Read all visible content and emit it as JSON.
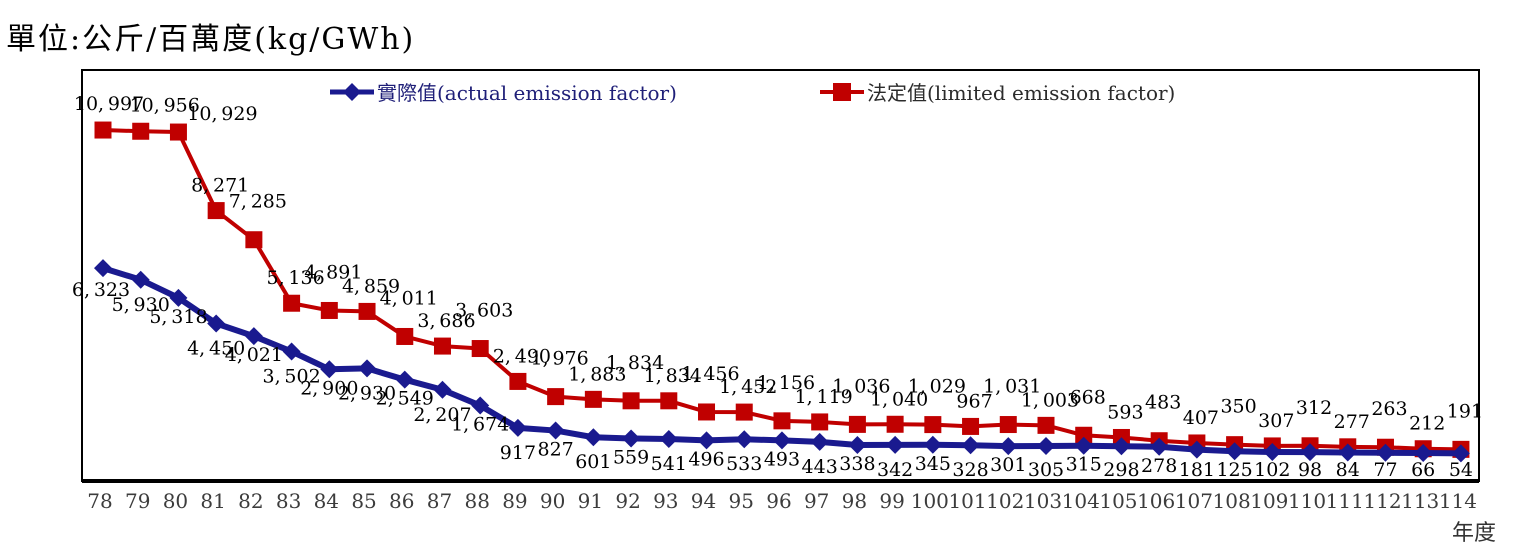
{
  "title": "單位:公斤/百萬度(kg/GWh)",
  "chart_data": {
    "type": "line",
    "title": "單位:公斤/百萬度(kg/GWh)",
    "xlabel": "年度",
    "ylabel": "",
    "ylim": [
      0,
      11500
    ],
    "grid": false,
    "legend_position": "top-center",
    "data_labels": true,
    "categories": [
      "78",
      "79",
      "80",
      "81",
      "82",
      "83",
      "84",
      "85",
      "86",
      "87",
      "88",
      "89",
      "90",
      "91",
      "92",
      "93",
      "94",
      "95",
      "96",
      "97",
      "98",
      "99",
      "100",
      "101",
      "102",
      "103",
      "104",
      "105",
      "106",
      "107",
      "108",
      "109",
      "110",
      "111",
      "112",
      "113",
      "114"
    ],
    "series": [
      {
        "name": "實際值(actual emission factor)",
        "color": "#1A1A8F",
        "marker": "diamond",
        "values": [
          6323,
          5930,
          5318,
          4450,
          4021,
          3502,
          2900,
          2930,
          2549,
          2207,
          1674,
          917,
          827,
          601,
          559,
          541,
          496,
          533,
          493,
          443,
          338,
          342,
          345,
          328,
          301,
          305,
          315,
          298,
          278,
          181,
          125,
          102,
          98,
          84,
          77,
          66,
          54
        ]
      },
      {
        "name": "法定值(limited emission factor)",
        "color": "#C00000",
        "marker": "square",
        "values": [
          10997,
          10956,
          10929,
          8271,
          7285,
          5136,
          4891,
          4859,
          4011,
          3686,
          3603,
          2490,
          1976,
          1883,
          1834,
          1834,
          1456,
          1452,
          1156,
          1119,
          1036,
          1040,
          1029,
          967,
          1031,
          1003,
          668,
          593,
          483,
          407,
          350,
          307,
          312,
          277,
          263,
          212,
          191
        ]
      }
    ],
    "axis_color": "#000000",
    "tick_label_color": "#3C3C3C",
    "label_color": "#000000"
  }
}
